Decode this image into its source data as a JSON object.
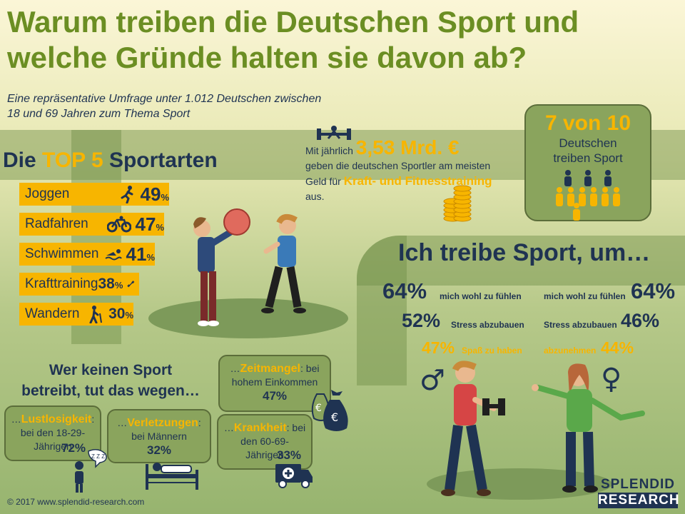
{
  "title_line1": "Warum treiben die Deutschen Sport und",
  "title_line2": "welche Gründe halten sie davon ab?",
  "subtitle_line1": "Eine repräsentative Umfrage unter 1.012 Deutschen zwischen",
  "subtitle_line2": "18 und 69 Jahren zum Thema Sport",
  "top5": {
    "heading_pre": "Die ",
    "heading_hl": "TOP 5",
    "heading_post": " Sportarten",
    "items": [
      {
        "label": "Joggen",
        "value": "49",
        "unit": "%",
        "icon": "running-icon"
      },
      {
        "label": "Radfahren",
        "value": "47",
        "unit": "%",
        "icon": "bicycle-icon"
      },
      {
        "label": "Schwimmen",
        "value": "41",
        "unit": "%",
        "icon": "swimmer-icon"
      },
      {
        "label": "Krafttraining",
        "value": "38",
        "unit": "%",
        "icon": "dumbbell-icon"
      },
      {
        "label": "Wandern",
        "value": "30",
        "unit": "%",
        "icon": "hiker-icon"
      }
    ]
  },
  "fact": {
    "pre": "Mit jährlich",
    "big": "3,53 Mrd. €",
    "mid": "geben die deutschen Sportler am meisten Geld für",
    "hl": "Kraft- und Fitnesstraining",
    "post": "aus."
  },
  "stat": {
    "num": "7 von 10",
    "line1": "Deutschen",
    "line2": "treiben Sport"
  },
  "reasons": {
    "heading": "Ich treibe Sport, um…",
    "male": [
      {
        "value": "64%",
        "text": "mich wohl zu fühlen"
      },
      {
        "value": "52%",
        "text": "Stress abzubauen"
      },
      {
        "value": "47%",
        "text": "Spaß zu haben"
      }
    ],
    "female": [
      {
        "value": "64%",
        "text": "mich wohl zu fühlen"
      },
      {
        "value": "46%",
        "text": "Stress abzubauen"
      },
      {
        "value": "44%",
        "text": "abzunehmen"
      }
    ],
    "male_symbol": "♂",
    "female_symbol": "♀"
  },
  "nosport": {
    "heading_line1": "Wer keinen Sport",
    "heading_line2": "betreibt, tut das wegen…",
    "items": [
      {
        "prefix": "…",
        "key": "Lustlosigkeit",
        "suffix": ":",
        "text": "bei den 18-29-Jährigen",
        "value": "72%"
      },
      {
        "prefix": "…",
        "key": "Verletzungen",
        "suffix": ":",
        "text": "bei Männern",
        "value": "32%"
      },
      {
        "prefix": "…",
        "key": "Zeitmangel",
        "suffix": ": bei",
        "text": "hohem Einkommen",
        "value": "47%"
      },
      {
        "prefix": "…",
        "key": "Krankheit",
        "suffix": ": bei",
        "text": "den 60-69-Jährigen",
        "value": "33%"
      }
    ],
    "sleep_text": "Z Z Z"
  },
  "footer": "© 2017 www.splendid-research.com",
  "brand": {
    "line1": "SPLENDID",
    "line2": "RESEARCH"
  },
  "colors": {
    "accent": "#f7b500",
    "navy": "#1f3352",
    "green_title": "#6b8e23",
    "box_green": "#8aa45d"
  }
}
